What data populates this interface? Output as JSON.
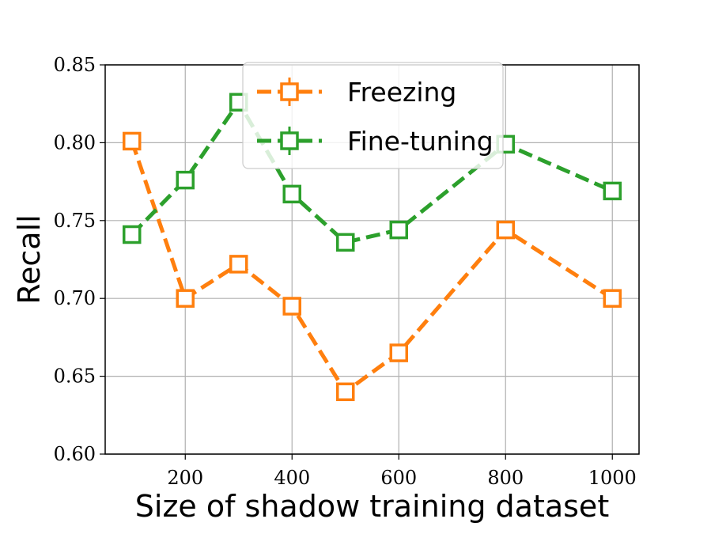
{
  "chart_data": {
    "type": "line",
    "title": "",
    "xlabel": "Size of shadow training dataset",
    "ylabel": "Recall",
    "xlim": [
      50,
      1050
    ],
    "ylim": [
      0.6,
      0.85
    ],
    "xticks": [
      200,
      400,
      600,
      800,
      1000
    ],
    "yticks": [
      0.6,
      0.65,
      0.7,
      0.75,
      0.8,
      0.85
    ],
    "ytick_labels": [
      "0.60",
      "0.65",
      "0.70",
      "0.75",
      "0.80",
      "0.85"
    ],
    "grid": true,
    "legend_position": "upper-center",
    "x": [
      100,
      200,
      300,
      400,
      500,
      600,
      800,
      1000
    ],
    "series": [
      {
        "name": "Freezing",
        "color": "#ff7f0e",
        "marker": "square",
        "line_style": "dashed",
        "values": [
          0.801,
          0.7,
          0.722,
          0.695,
          0.64,
          0.665,
          0.744,
          0.7
        ]
      },
      {
        "name": "Fine-tuning",
        "color": "#2ca02c",
        "marker": "square",
        "line_style": "dashed",
        "values": [
          0.741,
          0.776,
          0.826,
          0.767,
          0.736,
          0.744,
          0.799,
          0.769
        ]
      }
    ]
  }
}
